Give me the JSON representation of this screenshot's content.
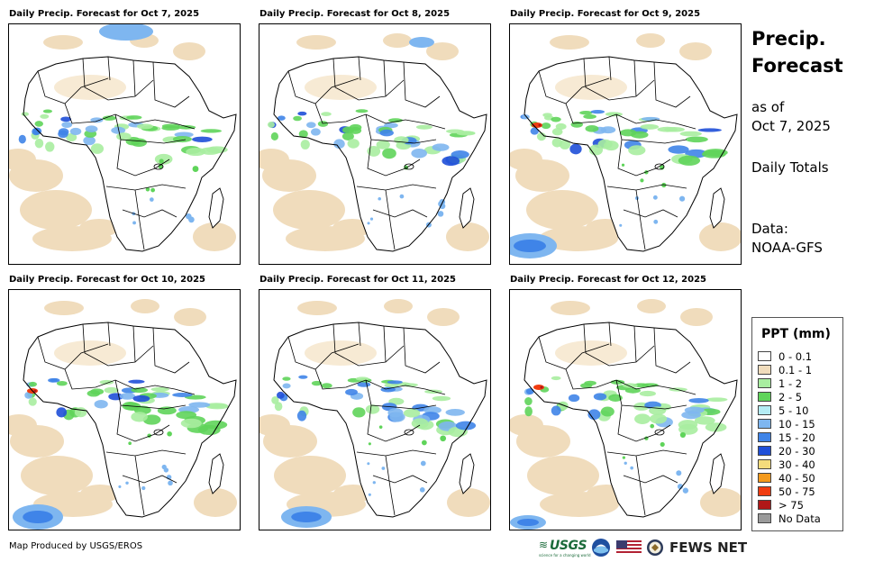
{
  "panels": [
    {
      "title": "Daily Precip. Forecast for Oct 7, 2025"
    },
    {
      "title": "Daily Precip. Forecast for Oct 8, 2025"
    },
    {
      "title": "Daily Precip. Forecast for Oct 9, 2025"
    },
    {
      "title": "Daily Precip. Forecast for Oct 10, 2025"
    },
    {
      "title": "Daily Precip. Forecast for Oct 11, 2025"
    },
    {
      "title": "Daily Precip. Forecast for Oct 12, 2025"
    }
  ],
  "sidebar": {
    "title_line1": "Precip.",
    "title_line2": "Forecast",
    "asof_label": "as of",
    "asof_date": "Oct 7, 2025",
    "period": "Daily Totals",
    "data_label": "Data:",
    "data_source": "NOAA-GFS"
  },
  "legend": {
    "title": "PPT (mm)",
    "items": [
      {
        "label": "0 - 0.1",
        "color": "#ffffff"
      },
      {
        "label": "0.1 - 1",
        "color": "#f0dcbc"
      },
      {
        "label": "1 - 2",
        "color": "#a8eda0"
      },
      {
        "label": "2 - 5",
        "color": "#5fd45a"
      },
      {
        "label": "5 - 10",
        "color": "#b4ecf4"
      },
      {
        "label": "10 - 15",
        "color": "#7eb6f0"
      },
      {
        "label": "15 - 20",
        "color": "#3f84e8"
      },
      {
        "label": "20 - 30",
        "color": "#1f4fd8"
      },
      {
        "label": "30 - 40",
        "color": "#f4dc7c"
      },
      {
        "label": "40 - 50",
        "color": "#f49a1c"
      },
      {
        "label": "50 - 75",
        "color": "#f03c10"
      },
      {
        "label": "> 75",
        "color": "#b01818"
      },
      {
        "label": "No Data",
        "color": "#9a9a9a"
      }
    ]
  },
  "footer": {
    "credit": "Map Produced by USGS/EROS",
    "usgs": "USGS",
    "usgs_tagline": "science for a changing world",
    "fews": "FEWS NET"
  }
}
